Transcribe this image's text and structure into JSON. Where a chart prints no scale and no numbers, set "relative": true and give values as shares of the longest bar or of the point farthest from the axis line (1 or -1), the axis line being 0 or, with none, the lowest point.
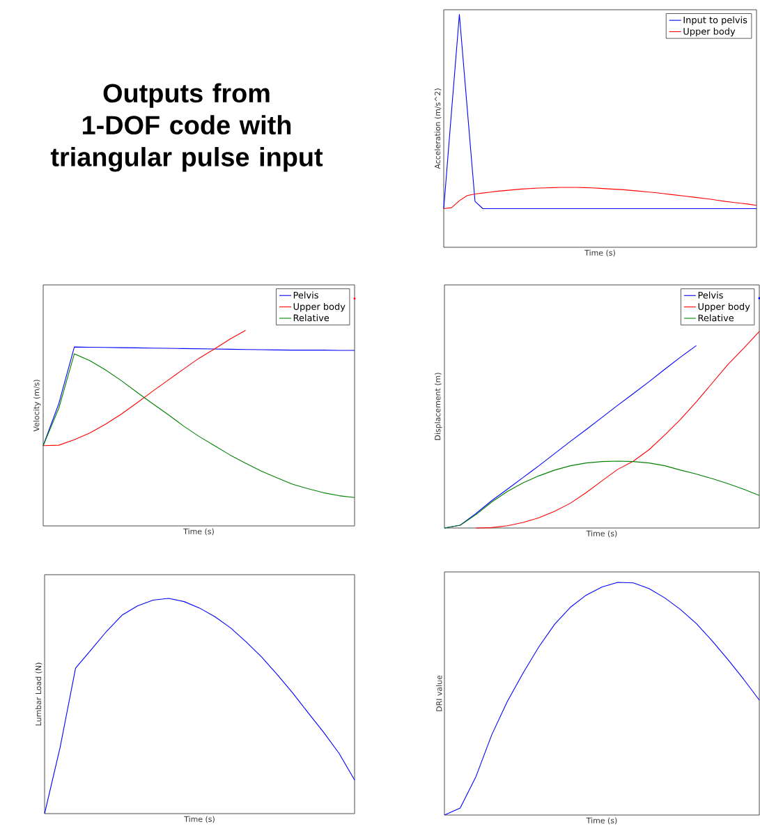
{
  "chart_data": [
    {
      "type": "other",
      "title": "Outputs from 1-DOF code with triangular pulse input"
    },
    {
      "type": "line",
      "relative": true,
      "xlabel": "Time (s)",
      "ylabel": "Acceleration (m/s^2)",
      "legend": "top right",
      "categories": [
        null,
        null,
        null,
        null,
        null,
        null,
        null,
        null,
        null,
        null,
        null,
        null,
        null,
        null,
        null,
        null,
        null,
        null,
        null,
        null,
        null,
        null,
        null,
        null,
        null,
        null,
        null,
        null,
        null,
        null,
        null,
        null,
        null,
        null,
        null,
        null,
        null,
        null,
        null,
        null,
        null
      ],
      "series": [
        {
          "name": "Input to pelvis",
          "color": "#0000ff",
          "values": [
            0.166,
            0.585,
            1.0,
            0.597,
            0.197,
            0.166,
            0.166,
            0.166,
            0.166,
            0.166,
            0.166,
            0.166,
            0.166,
            0.166,
            0.166,
            0.166,
            0.166,
            0.166,
            0.166,
            0.166,
            0.166,
            0.166,
            0.166,
            0.166,
            0.166,
            0.166,
            0.166,
            0.166,
            0.166,
            0.166,
            0.166,
            0.166,
            0.166,
            0.166,
            0.166,
            0.166,
            0.166,
            0.166,
            0.166,
            0.166,
            0.166
          ]
        },
        {
          "name": "Upper body",
          "color": "#ff0000",
          "values": [
            0.166,
            0.17,
            0.2,
            0.222,
            0.229,
            0.233,
            0.237,
            0.241,
            0.244,
            0.247,
            0.25,
            0.252,
            0.254,
            0.255,
            0.256,
            0.257,
            0.257,
            0.257,
            0.256,
            0.255,
            0.253,
            0.251,
            0.249,
            0.247,
            0.244,
            0.241,
            0.238,
            0.235,
            0.231,
            0.227,
            0.223,
            0.219,
            0.215,
            0.211,
            0.207,
            0.202,
            0.197,
            0.193,
            0.189,
            0.185,
            0.18
          ]
        }
      ]
    },
    {
      "type": "line",
      "relative": true,
      "xlabel": "Time (s)",
      "ylabel": "Velocity (m/s)",
      "legend": "top right",
      "categories": [
        null,
        null,
        null,
        null,
        null,
        null,
        null,
        null,
        null,
        null,
        null,
        null,
        null,
        null,
        null,
        null,
        null,
        null,
        null,
        null,
        null
      ],
      "series": [
        {
          "name": "Pelvis",
          "color": "#0000ff",
          "values": [
            0.353,
            0.537,
            0.787,
            0.786,
            0.785,
            0.784,
            0.783,
            0.782,
            0.781,
            0.78,
            0.779,
            0.778,
            0.777,
            0.776,
            0.775,
            0.774,
            0.773,
            0.773,
            0.773,
            0.772,
            0.772
          ]
        },
        {
          "name": "Upper body",
          "color": "#ff0000",
          "values": [
            0.353,
            0.355,
            0.379,
            0.409,
            0.447,
            0.491,
            0.54,
            0.591,
            0.64,
            0.689,
            0.737,
            0.778,
            0.822,
            0.86,
            null,
            null,
            null,
            null,
            null,
            null,
            1.0
          ]
        },
        {
          "name": "Relative",
          "color": "#008000",
          "values": [
            0.353,
            0.517,
            0.757,
            0.727,
            0.686,
            0.64,
            0.589,
            0.539,
            0.491,
            0.44,
            0.394,
            0.353,
            0.312,
            0.276,
            0.241,
            0.212,
            0.184,
            0.164,
            0.146,
            0.133,
            0.125
          ]
        }
      ]
    },
    {
      "type": "line",
      "relative": true,
      "xlabel": "Time (s)",
      "ylabel": "Displacement (m)",
      "legend": "top right",
      "categories": [
        null,
        null,
        null,
        null,
        null,
        null,
        null,
        null,
        null,
        null,
        null,
        null,
        null,
        null,
        null,
        null,
        null,
        null,
        null,
        null,
        null
      ],
      "series": [
        {
          "name": "Pelvis",
          "color": "#0000ff",
          "values": [
            0,
            0.012,
            0.063,
            0.119,
            0.169,
            0.22,
            0.271,
            0.324,
            0.377,
            0.428,
            0.481,
            0.534,
            0.585,
            0.637,
            0.691,
            0.744,
            0.794,
            null,
            null,
            null,
            1.0
          ]
        },
        {
          "name": "Upper body",
          "color": "#ff0000",
          "values": [
            null,
            null,
            0,
            0.002,
            0.01,
            0.024,
            0.045,
            0.073,
            0.108,
            0.154,
            0.205,
            0.255,
            0.291,
            0.341,
            0.405,
            0.473,
            0.549,
            0.63,
            0.711,
            0.782,
            0.855
          ]
        },
        {
          "name": "Relative",
          "color": "#008000",
          "values": [
            0,
            0.012,
            0.058,
            0.113,
            0.159,
            0.197,
            0.227,
            0.252,
            0.271,
            0.283,
            0.289,
            0.291,
            0.289,
            0.283,
            0.271,
            0.252,
            0.235,
            0.215,
            0.193,
            0.169,
            0.142
          ]
        }
      ]
    },
    {
      "type": "line",
      "relative": true,
      "xlabel": "Time (s)",
      "ylabel": "Lumbar Load (N)",
      "categories": [
        null,
        null,
        null,
        null,
        null,
        null,
        null,
        null,
        null,
        null,
        null,
        null,
        null,
        null,
        null,
        null,
        null,
        null,
        null,
        null,
        null
      ],
      "series": [
        {
          "color": "#0000ff",
          "values": [
            0,
            0.307,
            0.676,
            0.761,
            0.847,
            0.922,
            0.965,
            0.992,
            1.0,
            0.985,
            0.955,
            0.914,
            0.863,
            0.798,
            0.728,
            0.647,
            0.561,
            0.469,
            0.378,
            0.28,
            0.156
          ]
        }
      ]
    },
    {
      "type": "line",
      "relative": true,
      "xlabel": "Time (s)",
      "ylabel": "DRI value",
      "categories": [
        null,
        null,
        null,
        null,
        null,
        null,
        null,
        null,
        null,
        null,
        null,
        null,
        null,
        null,
        null,
        null,
        null,
        null,
        null,
        null,
        null
      ],
      "series": [
        {
          "color": "#0000ff",
          "values": [
            0,
            0.03,
            0.165,
            0.344,
            0.489,
            0.611,
            0.723,
            0.82,
            0.893,
            0.945,
            0.98,
            1.0,
            0.998,
            0.973,
            0.933,
            0.883,
            0.823,
            0.749,
            0.669,
            0.584,
            0.494
          ]
        }
      ]
    }
  ]
}
